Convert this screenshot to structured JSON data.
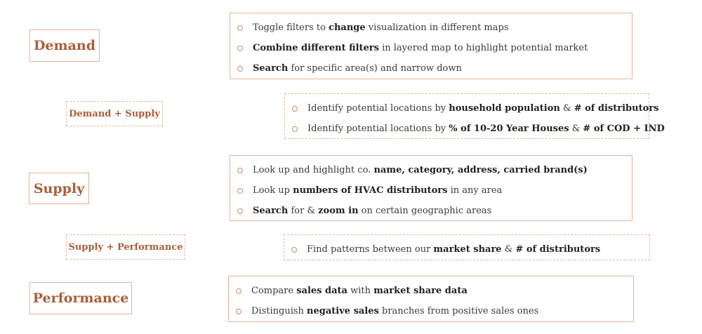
{
  "accent_color": "#a85f3a",
  "border_color": "#e3b497",
  "bullet_icon": "hollow-circle",
  "sections": {
    "demand": {
      "label": "Demand",
      "items": [
        [
          {
            "t": "Toggle filters to ",
            "b": false
          },
          {
            "t": "change",
            "b": true
          },
          {
            "t": " visualization in different maps",
            "b": false
          }
        ],
        [
          {
            "t": "Combine different filters",
            "b": true
          },
          {
            "t": " in layered map to highlight potential market",
            "b": false
          }
        ],
        [
          {
            "t": "Search",
            "b": true
          },
          {
            "t": " for specific area(s) and narrow down",
            "b": false
          }
        ]
      ]
    },
    "demand_supply": {
      "label": "Demand + Supply",
      "items": [
        [
          {
            "t": "Identify potential locations by ",
            "b": false
          },
          {
            "t": "household population",
            "b": true
          },
          {
            "t": " & ",
            "b": false
          },
          {
            "t": "# of distributors",
            "b": true
          }
        ],
        [
          {
            "t": "Identify potential locations by ",
            "b": false
          },
          {
            "t": "% of 10-20 Year Houses",
            "b": true
          },
          {
            "t": " & ",
            "b": false
          },
          {
            "t": "# of COD + IND",
            "b": true
          }
        ]
      ]
    },
    "supply": {
      "label": "Supply",
      "items": [
        [
          {
            "t": "Look up and highlight co. ",
            "b": false
          },
          {
            "t": "name, category, address, carried brand(s)",
            "b": true
          }
        ],
        [
          {
            "t": "Look up ",
            "b": false
          },
          {
            "t": "numbers of HVAC distributors",
            "b": true
          },
          {
            "t": " in any area",
            "b": false
          }
        ],
        [
          {
            "t": "Search",
            "b": true
          },
          {
            "t": " for & ",
            "b": false
          },
          {
            "t": "zoom in",
            "b": true
          },
          {
            "t": " on certain geographic areas",
            "b": false
          }
        ]
      ]
    },
    "supply_performance": {
      "label": "Supply + Performance",
      "items": [
        [
          {
            "t": "Find patterns between our ",
            "b": false
          },
          {
            "t": "market share",
            "b": true
          },
          {
            "t": " & ",
            "b": false
          },
          {
            "t": "# of distributors",
            "b": true
          }
        ]
      ]
    },
    "performance": {
      "label": "Performance",
      "items": [
        [
          {
            "t": "Compare ",
            "b": false
          },
          {
            "t": "sales data",
            "b": true
          },
          {
            "t": " with ",
            "b": false
          },
          {
            "t": "market share data",
            "b": true
          }
        ],
        [
          {
            "t": "Distinguish ",
            "b": false
          },
          {
            "t": "negative sales",
            "b": true
          },
          {
            "t": " branches from positive sales ones",
            "b": false
          }
        ]
      ]
    }
  }
}
